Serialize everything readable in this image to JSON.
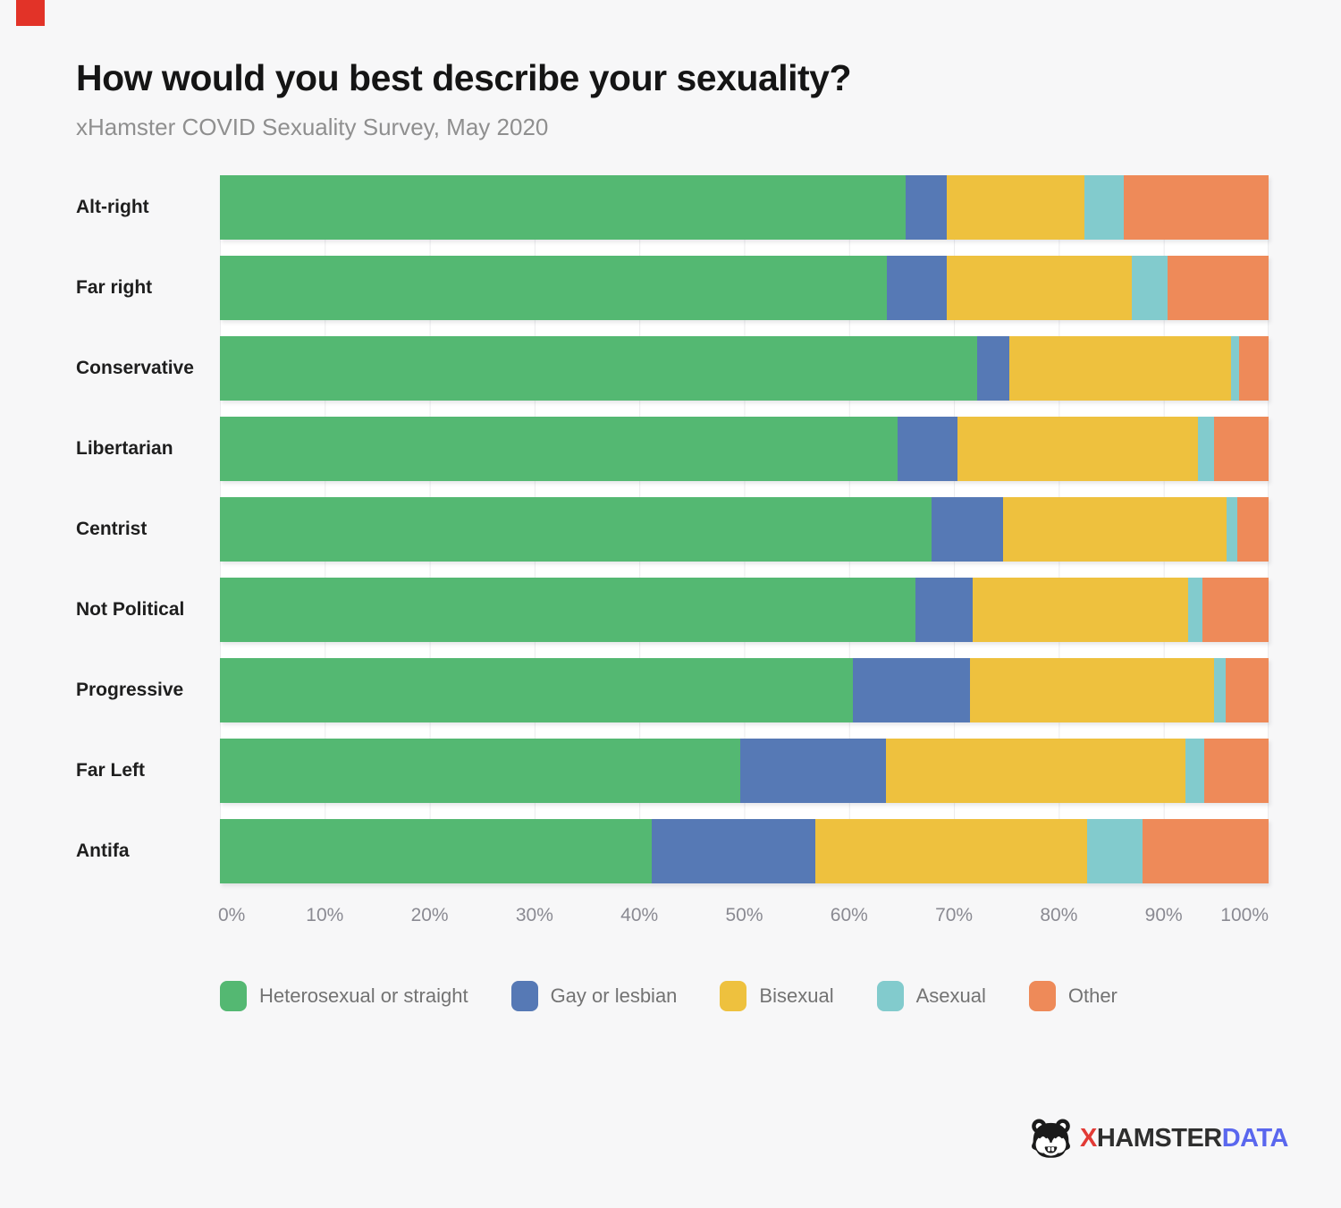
{
  "page": {
    "background_color": "#f7f7f8",
    "corner_mark_color": "#e23328"
  },
  "header": {
    "title": "How would you best describe your sexuality?",
    "subtitle": "xHamster COVID Sexuality Survey, May 2020"
  },
  "chart_data": {
    "type": "bar",
    "orientation": "horizontal",
    "stacked": true,
    "unit": "percent",
    "title": "How would you best describe your sexuality?",
    "subtitle": "xHamster COVID Sexuality Survey, May 2020",
    "categories": [
      "Alt-right",
      "Far right",
      "Conservative",
      "Libertarian",
      "Centrist",
      "Not Political",
      "Progressive",
      "Far Left",
      "Antifa"
    ],
    "series": [
      {
        "name": "Heterosexual or straight",
        "color": "#54b872",
        "values": [
          65.4,
          63.6,
          72.2,
          64.6,
          67.9,
          66.3,
          60.4,
          49.6,
          41.2
        ]
      },
      {
        "name": "Gay or lesbian",
        "color": "#5679b5",
        "values": [
          3.9,
          5.7,
          3.1,
          5.7,
          6.8,
          5.5,
          11.1,
          13.9,
          15.6
        ]
      },
      {
        "name": "Bisexual",
        "color": "#eec13e",
        "values": [
          13.1,
          17.7,
          21.1,
          23.0,
          21.3,
          20.5,
          23.3,
          28.6,
          25.9
        ]
      },
      {
        "name": "Asexual",
        "color": "#82cbcd",
        "values": [
          3.8,
          3.4,
          0.8,
          1.5,
          1.0,
          1.4,
          1.1,
          1.8,
          5.3
        ]
      },
      {
        "name": "Other",
        "color": "#ee8a59",
        "values": [
          13.8,
          9.6,
          2.8,
          5.2,
          3.0,
          6.3,
          4.1,
          6.1,
          12.0
        ]
      }
    ],
    "x_axis": {
      "min": 0,
      "max": 100,
      "tick_labels": [
        "0%",
        "10%",
        "20%",
        "30%",
        "40%",
        "50%",
        "60%",
        "70%",
        "80%",
        "90%",
        "100%"
      ]
    },
    "grid": true,
    "legend_position": "bottom"
  },
  "footer": {
    "logo_x": "X",
    "logo_hamster": "HAMSTER",
    "logo_data": "DATA"
  }
}
